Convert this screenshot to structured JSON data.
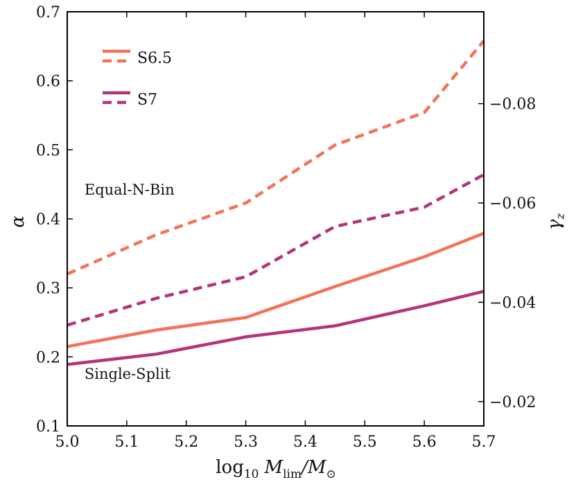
{
  "chart_data": {
    "type": "line",
    "title": "",
    "xlabel": "log10 M_lim/M_sun",
    "xlabel_parts": {
      "main": "log",
      "sub1": "10",
      "m": "M",
      "sub2": "lim",
      "slash": "/M",
      "sub3": "⊙"
    },
    "ylabel": "α",
    "ylabel_right": "γ",
    "ylabel_right_sub": "z",
    "xlim": [
      5.0,
      5.7
    ],
    "ylim": [
      0.1,
      0.7
    ],
    "ylim_right": [
      -0.0151,
      -0.0985
    ],
    "x_ticks": [
      5.0,
      5.1,
      5.2,
      5.3,
      5.4,
      5.5,
      5.6,
      5.7
    ],
    "x_tick_labels": [
      "5.0",
      "5.1",
      "5.2",
      "5.3",
      "5.4",
      "5.5",
      "5.6",
      "5.7"
    ],
    "y_ticks": [
      0.1,
      0.2,
      0.3,
      0.4,
      0.5,
      0.6,
      0.7
    ],
    "y_tick_labels": [
      "0.1",
      "0.2",
      "0.3",
      "0.4",
      "0.5",
      "0.6",
      "0.7"
    ],
    "y_right_ticks": [
      -0.02,
      -0.04,
      -0.06,
      -0.08
    ],
    "y_right_tick_labels": [
      "−0.02",
      "−0.04",
      "−0.06",
      "−0.08"
    ],
    "x": [
      5.0,
      5.15,
      5.3,
      5.45,
      5.6,
      5.7
    ],
    "series": [
      {
        "name": "S6.5 Equal-N-Bin",
        "group": "S6.5",
        "style": "dashed",
        "color": "#f4725a",
        "values": [
          0.32,
          0.377,
          0.423,
          0.507,
          0.554,
          0.658
        ]
      },
      {
        "name": "S7 Equal-N-Bin",
        "group": "S7",
        "style": "dashed",
        "color": "#b2357a",
        "values": [
          0.246,
          0.285,
          0.316,
          0.389,
          0.417,
          0.464
        ]
      },
      {
        "name": "S6.5 Single-Split",
        "group": "S6.5",
        "style": "solid",
        "color": "#f4725a",
        "values": [
          0.215,
          0.239,
          0.257,
          0.302,
          0.345,
          0.379
        ]
      },
      {
        "name": "S7 Single-Split",
        "group": "S7",
        "style": "solid",
        "color": "#b2357a",
        "values": [
          0.189,
          0.204,
          0.229,
          0.245,
          0.274,
          0.295
        ]
      }
    ],
    "legend": [
      {
        "label": "S6.5",
        "color": "#f4725a"
      },
      {
        "label": "S7",
        "color": "#b2357a"
      }
    ],
    "legend_position": "top-left",
    "annotations": [
      {
        "text": "Equal-N-Bin",
        "x": 5.015,
        "y": 0.435
      },
      {
        "text": "Single-Split",
        "x": 5.015,
        "y": 0.168
      }
    ],
    "grid": false
  }
}
